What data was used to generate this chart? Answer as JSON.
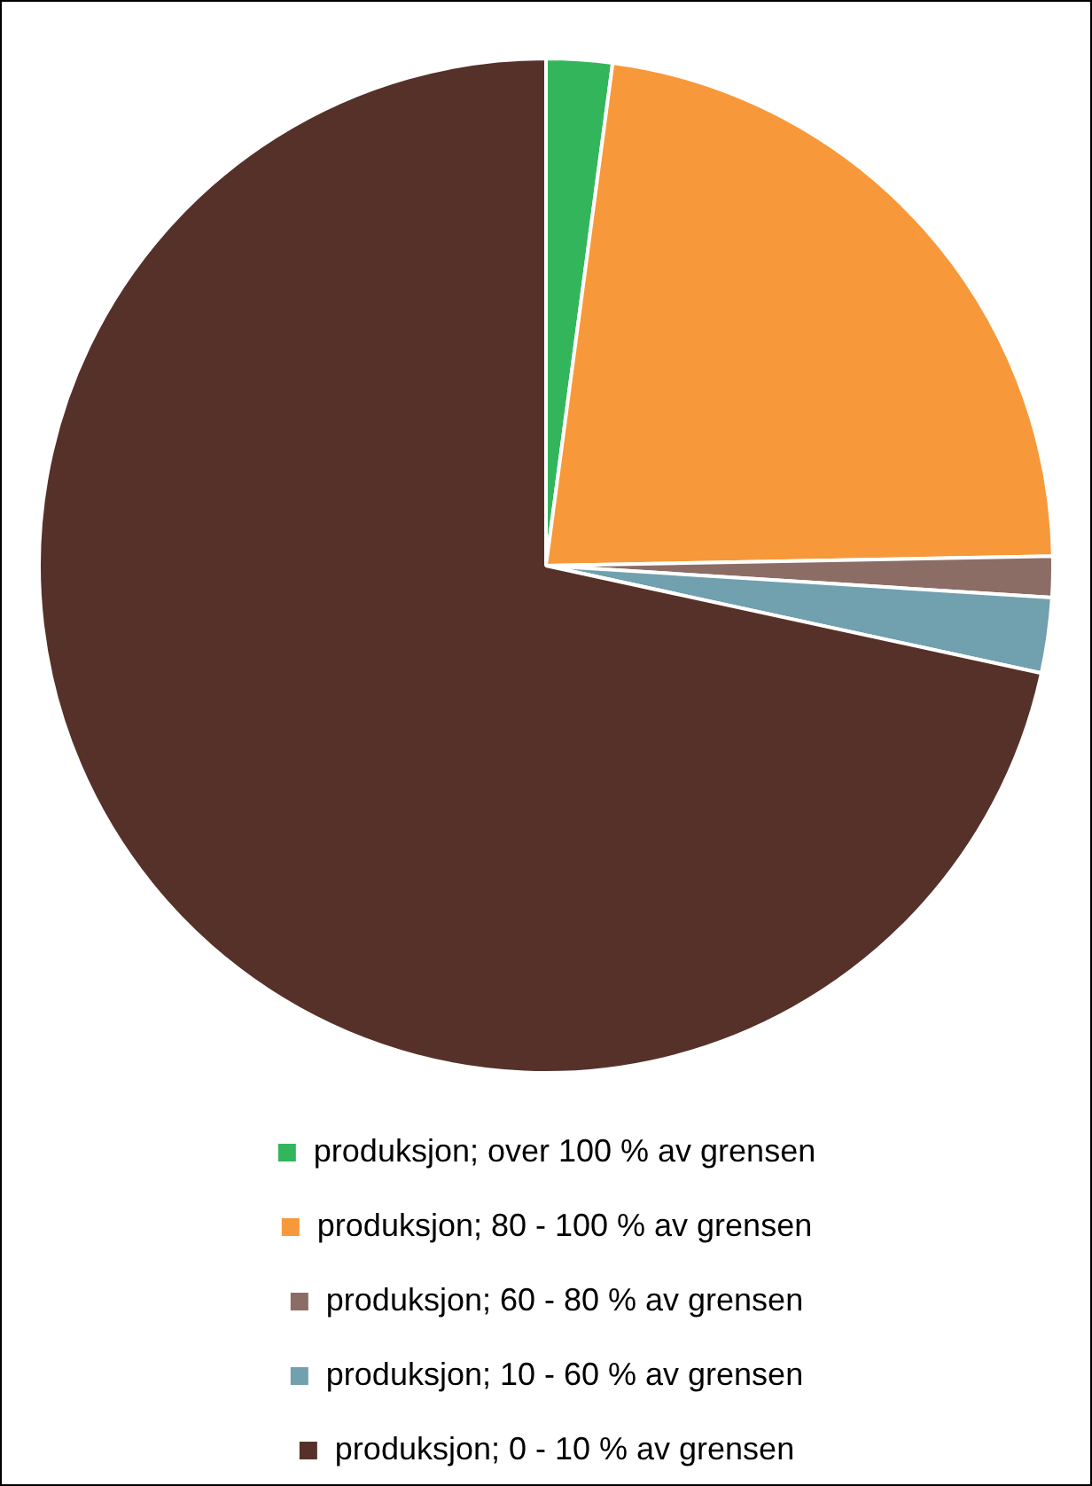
{
  "chart_data": {
    "type": "pie",
    "categories": [
      "produksjon; over 100 % av grensen",
      "produksjon; 80 - 100 % av grensen",
      "produksjon; 60 - 80 % av grensen",
      "produksjon; 10 - 60 % av grensen",
      "produksjon; 0 - 10 % av grensen"
    ],
    "values": [
      2.1,
      22.6,
      1.3,
      2.4,
      71.6
    ],
    "colors": [
      "#33b65b",
      "#f7993a",
      "#8c6d66",
      "#71a0ae",
      "#56312a"
    ],
    "legend": "bottom"
  }
}
